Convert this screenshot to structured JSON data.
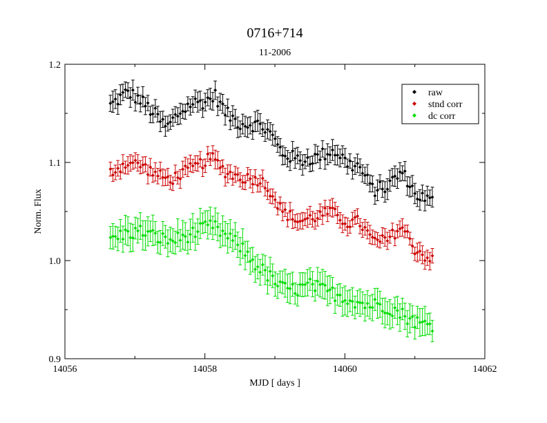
{
  "chart_data": {
    "type": "scatter",
    "title": "0716+714",
    "subtitle": "11-2006",
    "xlabel": "MJD [ days ]",
    "ylabel": "Norm. Flux",
    "xlim": [
      14056,
      14062
    ],
    "ylim": [
      0.9,
      1.2
    ],
    "x_ticks": [
      14056,
      14058,
      14060,
      14062
    ],
    "x_tick_labels": [
      "14056",
      "14058",
      "14060",
      "14062"
    ],
    "y_ticks": [
      0.9,
      1.0,
      1.1,
      1.2
    ],
    "y_tick_labels": [
      "0.9",
      "1.0",
      "1.1",
      "1.2"
    ],
    "legend_position": "top-right",
    "x_range": [
      14056.65,
      14061.25
    ],
    "n_points": 130,
    "series": [
      {
        "name": "raw",
        "color": "#000000",
        "error": 0.009,
        "trend": [
          [
            14056.65,
            1.158
          ],
          [
            14056.9,
            1.172
          ],
          [
            14057.1,
            1.162
          ],
          [
            14057.3,
            1.148
          ],
          [
            14057.45,
            1.135
          ],
          [
            14057.6,
            1.148
          ],
          [
            14057.8,
            1.16
          ],
          [
            14058.0,
            1.162
          ],
          [
            14058.15,
            1.168
          ],
          [
            14058.3,
            1.15
          ],
          [
            14058.5,
            1.14
          ],
          [
            14058.8,
            1.138
          ],
          [
            14058.95,
            1.128
          ],
          [
            14059.1,
            1.11
          ],
          [
            14059.35,
            1.102
          ],
          [
            14059.6,
            1.105
          ],
          [
            14059.8,
            1.112
          ],
          [
            14059.9,
            1.11
          ],
          [
            14060.05,
            1.098
          ],
          [
            14060.2,
            1.096
          ],
          [
            14060.4,
            1.072
          ],
          [
            14060.6,
            1.075
          ],
          [
            14060.8,
            1.09
          ],
          [
            14060.9,
            1.082
          ],
          [
            14061.0,
            1.068
          ],
          [
            14061.25,
            1.06
          ]
        ],
        "wiggle": 0.007
      },
      {
        "name": "stnd corr",
        "color": "#cc0000",
        "error": 0.008,
        "trend": [
          [
            14056.65,
            1.09
          ],
          [
            14056.9,
            1.1
          ],
          [
            14057.1,
            1.097
          ],
          [
            14057.3,
            1.088
          ],
          [
            14057.5,
            1.082
          ],
          [
            14057.7,
            1.09
          ],
          [
            14057.9,
            1.097
          ],
          [
            14058.1,
            1.105
          ],
          [
            14058.3,
            1.09
          ],
          [
            14058.5,
            1.085
          ],
          [
            14058.8,
            1.082
          ],
          [
            14058.95,
            1.07
          ],
          [
            14059.1,
            1.05
          ],
          [
            14059.35,
            1.04
          ],
          [
            14059.6,
            1.045
          ],
          [
            14059.8,
            1.05
          ],
          [
            14059.9,
            1.045
          ],
          [
            14060.05,
            1.038
          ],
          [
            14060.2,
            1.04
          ],
          [
            14060.4,
            1.02
          ],
          [
            14060.6,
            1.02
          ],
          [
            14060.8,
            1.035
          ],
          [
            14060.9,
            1.025
          ],
          [
            14061.0,
            1.012
          ],
          [
            14061.25,
            1.0
          ]
        ],
        "wiggle": 0.006
      },
      {
        "name": "dc corr",
        "color": "#00dd00",
        "error": 0.013,
        "trend": [
          [
            14056.65,
            1.022
          ],
          [
            14056.9,
            1.028
          ],
          [
            14057.1,
            1.03
          ],
          [
            14057.3,
            1.024
          ],
          [
            14057.5,
            1.02
          ],
          [
            14057.7,
            1.024
          ],
          [
            14057.9,
            1.03
          ],
          [
            14058.1,
            1.036
          ],
          [
            14058.3,
            1.025
          ],
          [
            14058.5,
            1.015
          ],
          [
            14058.7,
            0.998
          ],
          [
            14058.9,
            0.985
          ],
          [
            14059.1,
            0.972
          ],
          [
            14059.3,
            0.97
          ],
          [
            14059.5,
            0.975
          ],
          [
            14059.7,
            0.97
          ],
          [
            14059.9,
            0.965
          ],
          [
            14060.1,
            0.96
          ],
          [
            14060.3,
            0.955
          ],
          [
            14060.5,
            0.955
          ],
          [
            14060.7,
            0.95
          ],
          [
            14060.9,
            0.942
          ],
          [
            14061.1,
            0.935
          ],
          [
            14061.25,
            0.935
          ]
        ],
        "wiggle": 0.007
      }
    ]
  }
}
